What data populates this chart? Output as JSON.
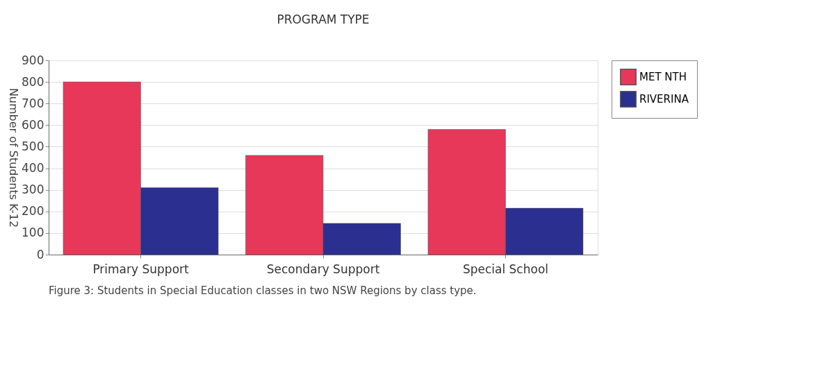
{
  "chart_data": {
    "type": "bar",
    "title": "PROGRAM TYPE",
    "ylabel": "Number of Students K-12",
    "categories": [
      "Primary  Support",
      "Secondary Support",
      "Special School"
    ],
    "series": [
      {
        "name": "MET NTH",
        "color": "#e8385a",
        "values": [
          800,
          460,
          580
        ]
      },
      {
        "name": "RIVERINA",
        "color": "#2b2f8f",
        "values": [
          310,
          145,
          215
        ]
      }
    ],
    "ylim": [
      0,
      900
    ],
    "yticks": [
      0,
      100,
      200,
      300,
      400,
      500,
      600,
      700,
      800,
      900
    ],
    "grid": "y",
    "legend": "top right",
    "annotations": [
      "Figure 3: Students in  Special Education classes in two NSW Regions by class type."
    ]
  }
}
